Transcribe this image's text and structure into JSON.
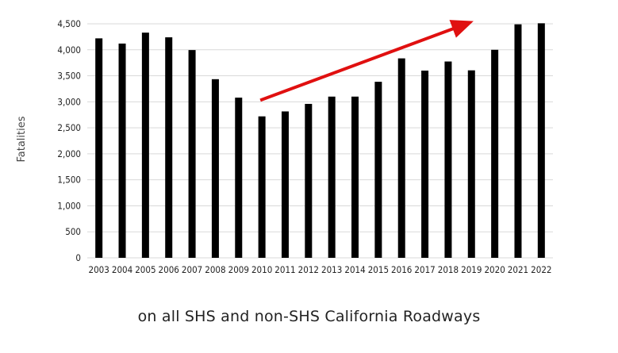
{
  "chart_data": {
    "type": "bar",
    "categories": [
      "2003",
      "2004",
      "2005",
      "2006",
      "2007",
      "2008",
      "2009",
      "2010",
      "2011",
      "2012",
      "2013",
      "2014",
      "2015",
      "2016",
      "2017",
      "2018",
      "2019",
      "2020",
      "2021",
      "2022"
    ],
    "values": [
      4220,
      4120,
      4330,
      4240,
      3995,
      3435,
      3080,
      2720,
      2815,
      2960,
      3100,
      3100,
      3385,
      3835,
      3600,
      3775,
      3605,
      4000,
      4490,
      4510
    ],
    "ylabel": "Fatalities",
    "ylim": [
      0,
      4500
    ],
    "yticks": [
      0,
      500,
      1000,
      1500,
      2000,
      2500,
      3000,
      3500,
      4000,
      4500
    ],
    "ytick_labels": [
      "0",
      "500",
      "1,000",
      "1,500",
      "2,000",
      "2,500",
      "3,000",
      "3,500",
      "4,000",
      "4,500"
    ],
    "grid": true,
    "bar_color": "#000000",
    "grid_color": "#d9d9d9",
    "annotation": {
      "type": "arrow",
      "color": "#e01010",
      "from": {
        "x": "2010",
        "y": 3000
      },
      "to": {
        "x": "2019",
        "y": 4520
      }
    }
  },
  "caption": "on all SHS and non-SHS California Roadways"
}
